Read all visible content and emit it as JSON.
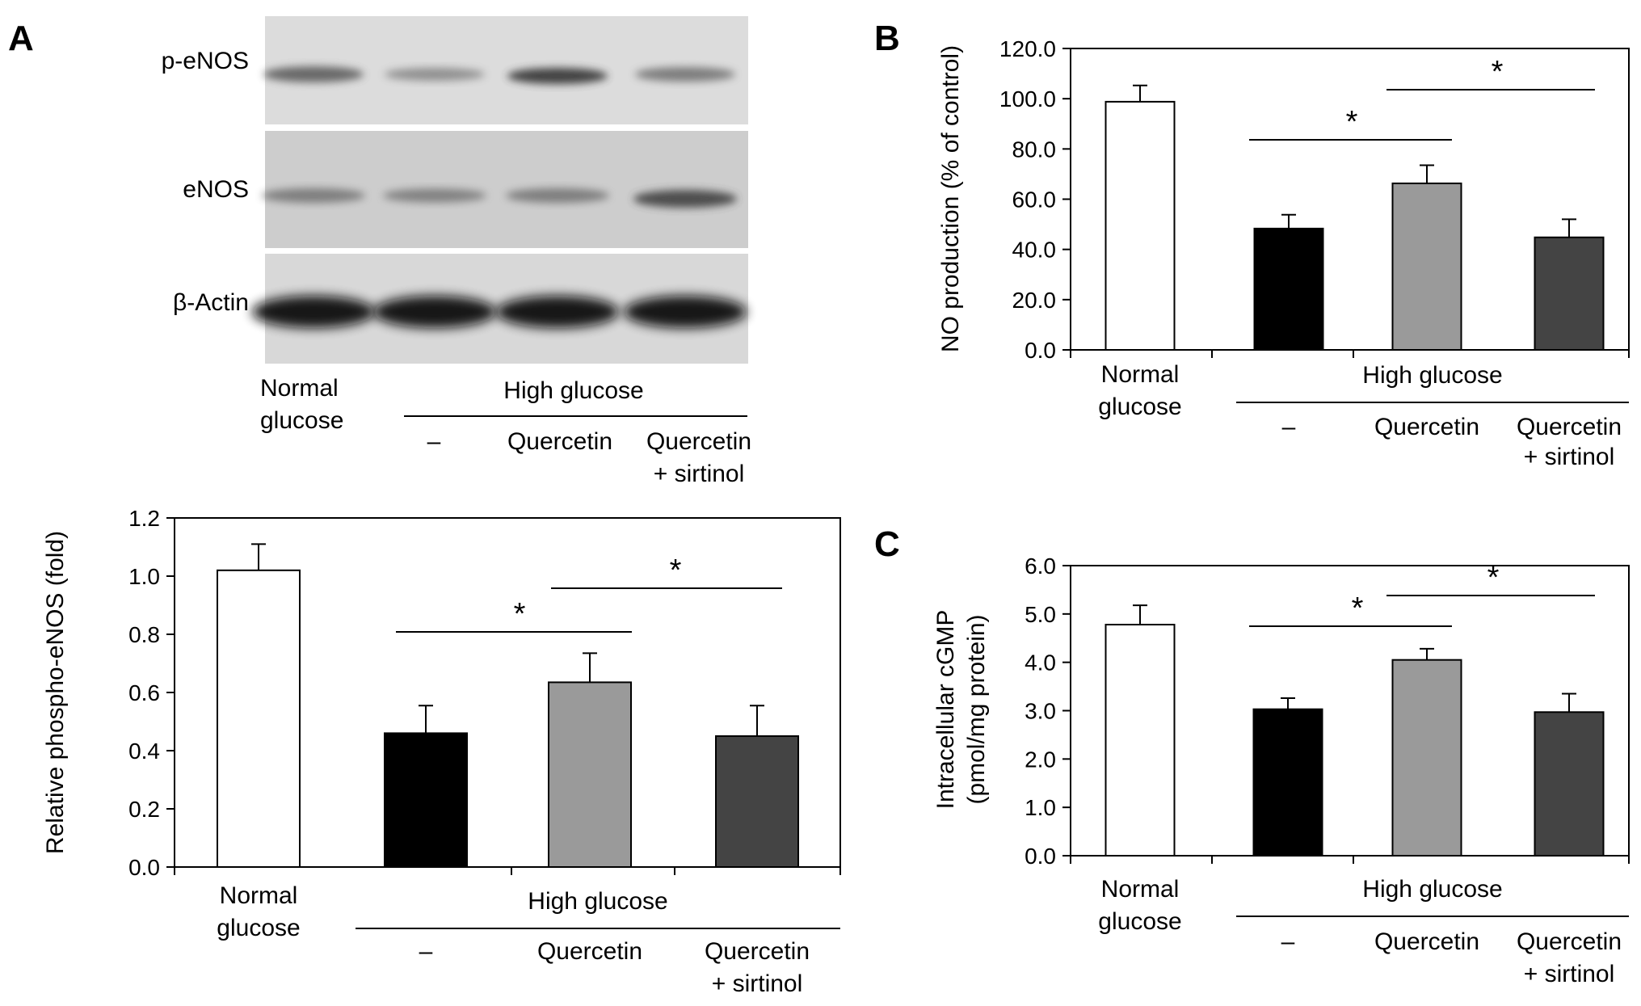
{
  "panels": {
    "A": {
      "letter": "A"
    },
    "B": {
      "letter": "B"
    },
    "C": {
      "letter": "C"
    }
  },
  "blot": {
    "rows": [
      "p-eNOS",
      "eNOS",
      "β-Actin"
    ],
    "group_line1": "Normal",
    "group_line2": "glucose",
    "high_glucose": "High glucose",
    "lane_dash": "–",
    "lane_quercetin": "Quercetin",
    "lane_qs_line1": "Quercetin",
    "lane_qs_line2": "+ sirtinol"
  },
  "colors": {
    "normal": "#ffffff",
    "hg_control": "#000000",
    "quercetin": "#9a9a9a",
    "quercetin_sirtinol": "#444444"
  },
  "chart_data": [
    {
      "id": "A-bar",
      "type": "bar",
      "categories": [
        "Normal glucose",
        "–",
        "Quercetin",
        "Quercetin + sirtinol"
      ],
      "category_group": "High glucose",
      "values": [
        1.02,
        0.46,
        0.635,
        0.45
      ],
      "errors": [
        0.09,
        0.095,
        0.1,
        0.105
      ],
      "ylabel": "Relative phospho-eNOS (fold)",
      "ylim": [
        0,
        1.2
      ],
      "yticks": [
        "0.0",
        "0.2",
        "0.4",
        "0.6",
        "0.8",
        "1.0",
        "1.2"
      ],
      "significance": [
        {
          "from": "–",
          "to": "Quercetin",
          "mark": "*"
        },
        {
          "from": "Quercetin",
          "to": "Quercetin + sirtinol",
          "mark": "*"
        }
      ],
      "grid": false
    },
    {
      "id": "B-bar",
      "type": "bar",
      "categories": [
        "Normal glucose",
        "–",
        "Quercetin",
        "Quercetin + sirtinol"
      ],
      "category_group": "High glucose",
      "values": [
        98.8,
        48.3,
        66.3,
        44.8
      ],
      "errors": [
        6.5,
        5.5,
        7.2,
        7.2
      ],
      "ylabel": "NO production (% of control)",
      "ylim": [
        0,
        120
      ],
      "yticks": [
        "0.0",
        "20.0",
        "40.0",
        "60.0",
        "80.0",
        "100.0",
        "120.0"
      ],
      "significance": [
        {
          "from": "–",
          "to": "Quercetin",
          "mark": "*"
        },
        {
          "from": "Quercetin",
          "to": "Quercetin + sirtinol",
          "mark": "*"
        }
      ],
      "grid": false
    },
    {
      "id": "C-bar",
      "type": "bar",
      "categories": [
        "Normal glucose",
        "–",
        "Quercetin",
        "Quercetin + sirtinol"
      ],
      "category_group": "High glucose",
      "values": [
        4.78,
        3.03,
        4.05,
        2.97
      ],
      "errors": [
        0.4,
        0.23,
        0.23,
        0.38
      ],
      "ylabel": "Intracellular cGMP (pmol/mg protein)",
      "ylabel_lines": [
        "Intracellular cGMP",
        "(pmol/mg protein)"
      ],
      "ylim": [
        0,
        6
      ],
      "yticks": [
        "0.0",
        "1.0",
        "2.0",
        "3.0",
        "4.0",
        "5.0",
        "6.0"
      ],
      "significance": [
        {
          "from": "–",
          "to": "Quercetin",
          "mark": "*"
        },
        {
          "from": "Quercetin",
          "to": "Quercetin + sirtinol",
          "mark": "*"
        }
      ],
      "grid": false
    }
  ]
}
